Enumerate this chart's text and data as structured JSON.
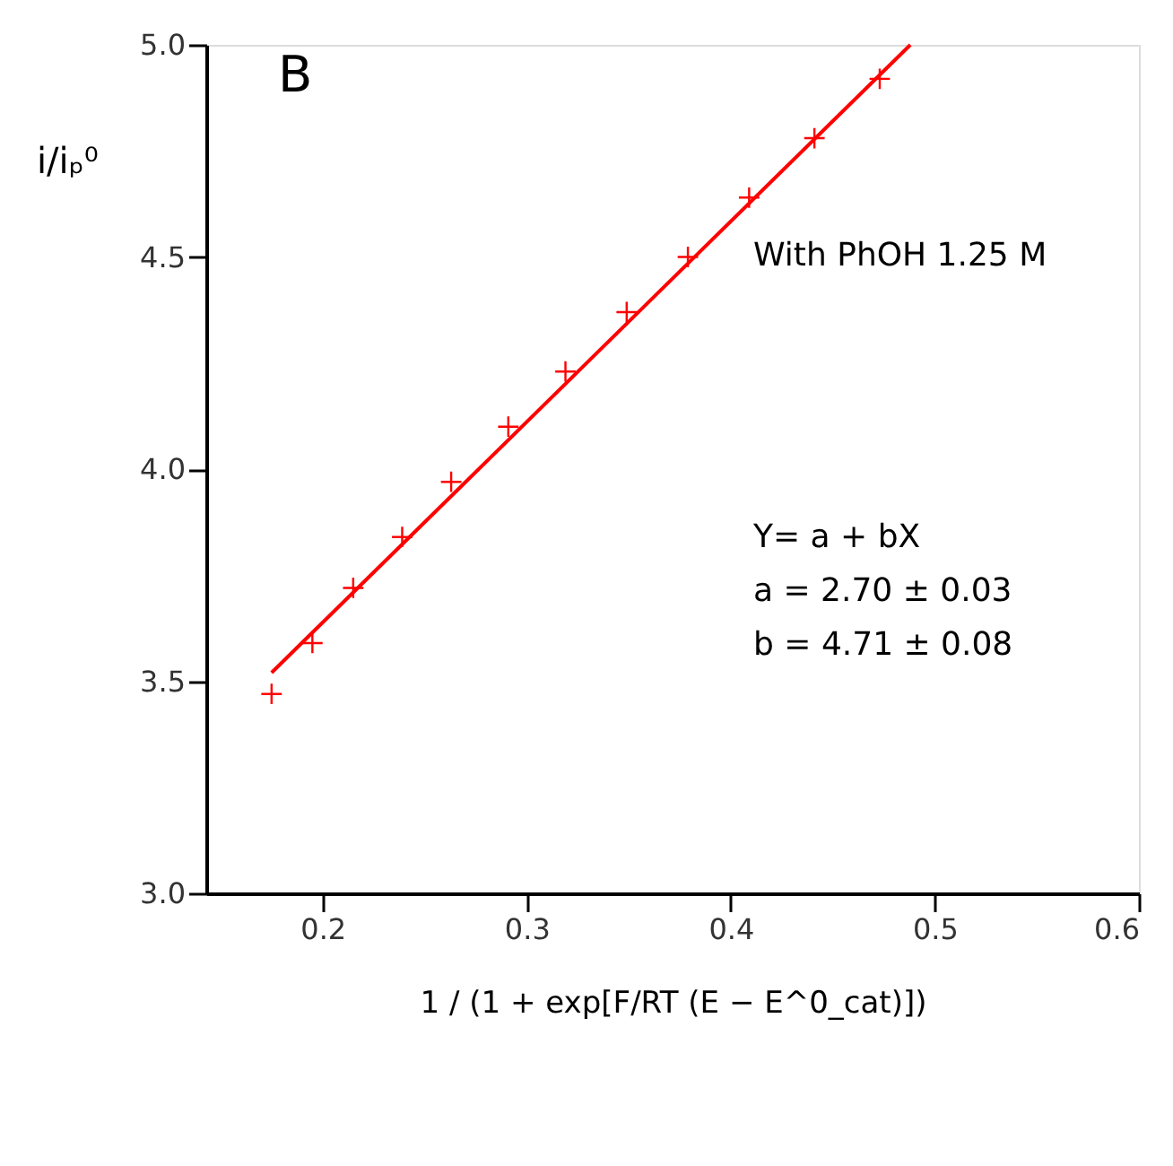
{
  "chart_data": {
    "type": "scatter",
    "xlabel": "1 / (1 + exp[F/RT (E − E^0_cat)])",
    "ylabel": "i/iₚ⁰",
    "x": [
      0.175,
      0.195,
      0.215,
      0.239,
      0.263,
      0.291,
      0.319,
      0.349,
      0.379,
      0.409,
      0.441,
      0.473
    ],
    "series": [
      {
        "color": "#ff0000",
        "marker": "cross",
        "values": [
          3.47,
          3.59,
          3.72,
          3.84,
          3.97,
          4.1,
          4.23,
          4.37,
          4.5,
          4.64,
          4.78,
          4.92
        ]
      },
      {
        "type": "line",
        "color": "#ff0000",
        "marker": "none",
        "line_style": "solid",
        "x": [
          0.175,
          0.488
        ],
        "values": [
          3.52,
          5.0
        ]
      }
    ],
    "annotations": [
      "B",
      "With PhOH 1.25 M",
      "Y= a + bX",
      "a = 2.70 ± 0.03",
      "b = 4.71 ± 0.08"
    ],
    "xlim": [
      0.143,
      0.6
    ],
    "ylim": [
      3.0,
      5.0
    ],
    "xticks": [
      {
        "value": 0.2,
        "label": "0.2"
      },
      {
        "value": 0.3,
        "label": "0.3"
      },
      {
        "value": 0.4,
        "label": "0.4"
      },
      {
        "value": 0.5,
        "label": "0.5"
      },
      {
        "value": 0.6,
        "label": "0.6"
      }
    ],
    "yticks": [
      {
        "value": 3.0,
        "label": "3.0"
      },
      {
        "value": 3.5,
        "label": "3.5"
      },
      {
        "value": 4.0,
        "label": "4.0"
      },
      {
        "value": 4.5,
        "label": "4.5"
      },
      {
        "value": 5.0,
        "label": "5.0"
      }
    ],
    "grid": false
  }
}
